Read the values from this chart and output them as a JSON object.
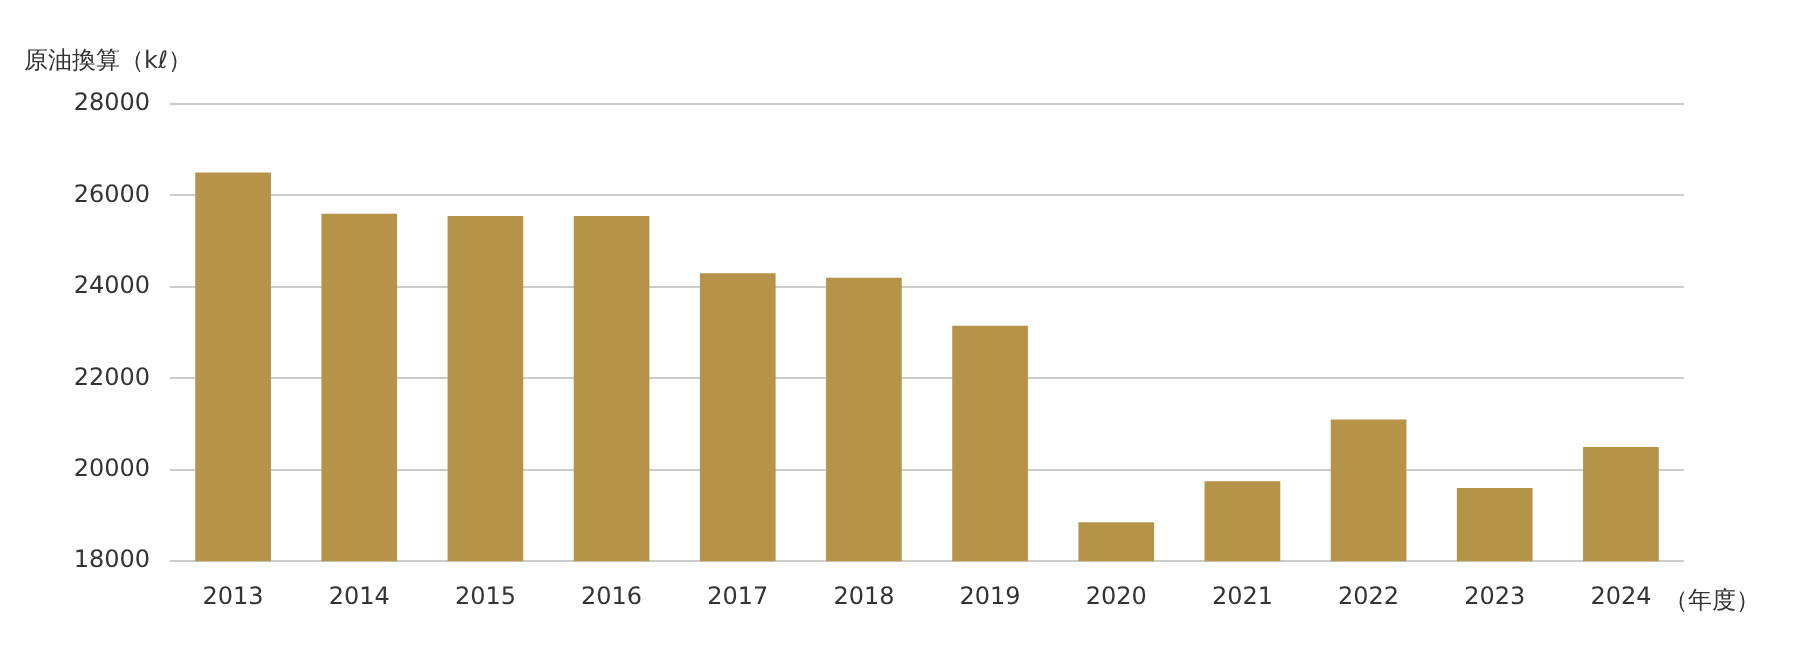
{
  "chart_data": {
    "type": "bar",
    "ylabel": "原油換算（kℓ）",
    "xlabel": "（年度）",
    "categories": [
      "2013",
      "2014",
      "2015",
      "2016",
      "2017",
      "2018",
      "2019",
      "2020",
      "2021",
      "2022",
      "2023",
      "2024"
    ],
    "values": [
      26500,
      25600,
      25550,
      25550,
      24300,
      24200,
      23150,
      18850,
      19750,
      21100,
      19600,
      20500
    ],
    "color": "#b5944a",
    "ylim": [
      18000,
      28000
    ],
    "yticks": [
      18000,
      20000,
      22000,
      24000,
      26000,
      28000
    ],
    "grid": "y",
    "legend": false
  }
}
